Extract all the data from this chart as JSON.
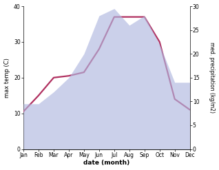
{
  "months": [
    "Jan",
    "Feb",
    "Mar",
    "Apr",
    "May",
    "Jun",
    "Jul",
    "Aug",
    "Sep",
    "Oct",
    "Nov",
    "Dec"
  ],
  "temp_max": [
    10.5,
    15.0,
    20.0,
    20.5,
    21.5,
    28.0,
    37.0,
    37.0,
    37.0,
    30.0,
    14.0,
    11.0
  ],
  "precip": [
    9.5,
    9.5,
    12.0,
    15.0,
    20.0,
    28.0,
    29.5,
    26.0,
    28.0,
    22.0,
    14.0,
    14.0
  ],
  "temp_ylim": [
    0,
    40
  ],
  "precip_ylim": [
    0,
    30
  ],
  "temp_color": "#b03060",
  "precip_fill_color": "#b0b8e0",
  "precip_fill_alpha": 0.65,
  "xlabel": "date (month)",
  "ylabel_left": "max temp (C)",
  "ylabel_right": "med. precipitation (kg/m2)",
  "temp_yticks": [
    0,
    10,
    20,
    30,
    40
  ],
  "precip_yticks": [
    0,
    5,
    10,
    15,
    20,
    25,
    30
  ],
  "line_width": 1.6,
  "bg_color": "#ffffff"
}
